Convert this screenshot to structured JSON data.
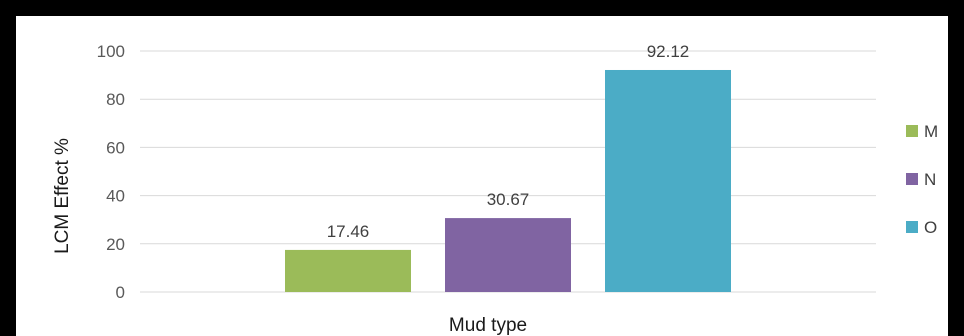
{
  "chart_data": {
    "type": "bar",
    "title": "",
    "xlabel": "Mud type",
    "ylabel": "LCM Effect %",
    "ylim": [
      0,
      100
    ],
    "yticks": [
      0,
      20,
      40,
      60,
      80,
      100
    ],
    "ytick_labels": [
      "0",
      "20",
      "40",
      "60",
      "80",
      "100"
    ],
    "grid": true,
    "legend_position": "right",
    "series": [
      {
        "name": "M",
        "value": 17.46,
        "label": "17.46",
        "color": "#9BBB59"
      },
      {
        "name": "N",
        "value": 30.67,
        "label": "30.67",
        "color": "#8064A2"
      },
      {
        "name": "O",
        "value": 92.12,
        "label": "92.12",
        "color": "#4BACC6"
      }
    ]
  }
}
